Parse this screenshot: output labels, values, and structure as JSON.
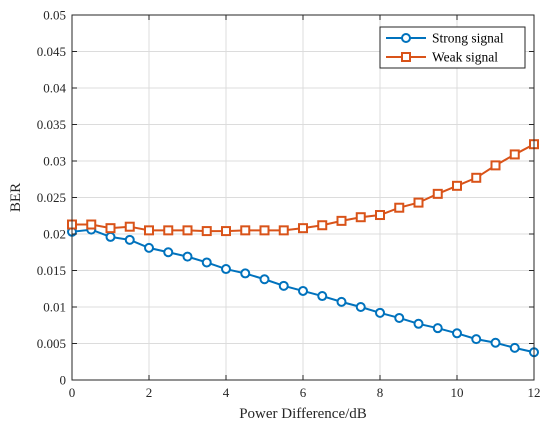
{
  "chart_data": {
    "type": "line",
    "title": "",
    "xlabel": "Power Difference/dB",
    "ylabel": "BER",
    "xlim": [
      0,
      12
    ],
    "ylim": [
      0,
      0.05
    ],
    "xticks": [
      0,
      2,
      4,
      6,
      8,
      10,
      12
    ],
    "xtick_labels": [
      "0",
      "2",
      "4",
      "6",
      "8",
      "10",
      "12"
    ],
    "yticks": [
      0,
      0.005,
      0.01,
      0.015,
      0.02,
      0.025,
      0.03,
      0.035,
      0.04,
      0.045,
      0.05
    ],
    "ytick_labels": [
      "0",
      "0.005",
      "0.01",
      "0.015",
      "0.02",
      "0.025",
      "0.03",
      "0.035",
      "0.04",
      "0.045",
      "0.05"
    ],
    "grid": true,
    "legend_position": "top-right",
    "x": [
      0,
      0.5,
      1,
      1.5,
      2,
      2.5,
      3,
      3.5,
      4,
      4.5,
      5,
      5.5,
      6,
      6.5,
      7,
      7.5,
      8,
      8.5,
      9,
      9.5,
      10,
      10.5,
      11,
      11.5,
      12
    ],
    "series": [
      {
        "name": "Strong signal",
        "color": "#0072BD",
        "marker": "circle",
        "values": [
          0.0203,
          0.0206,
          0.0196,
          0.0192,
          0.0181,
          0.0175,
          0.0169,
          0.0161,
          0.0152,
          0.0146,
          0.0138,
          0.0129,
          0.0122,
          0.0115,
          0.0107,
          0.01,
          0.0092,
          0.0085,
          0.0077,
          0.0071,
          0.0064,
          0.0056,
          0.0051,
          0.0044,
          0.0038
        ]
      },
      {
        "name": "Weak signal",
        "color": "#D95319",
        "marker": "square",
        "values": [
          0.0213,
          0.0213,
          0.0208,
          0.021,
          0.0205,
          0.0205,
          0.0205,
          0.0204,
          0.0204,
          0.0205,
          0.0205,
          0.0205,
          0.0208,
          0.0212,
          0.0218,
          0.0223,
          0.0226,
          0.0236,
          0.0243,
          0.0255,
          0.0266,
          0.0277,
          0.0294,
          0.0309,
          0.0323
        ]
      }
    ]
  }
}
